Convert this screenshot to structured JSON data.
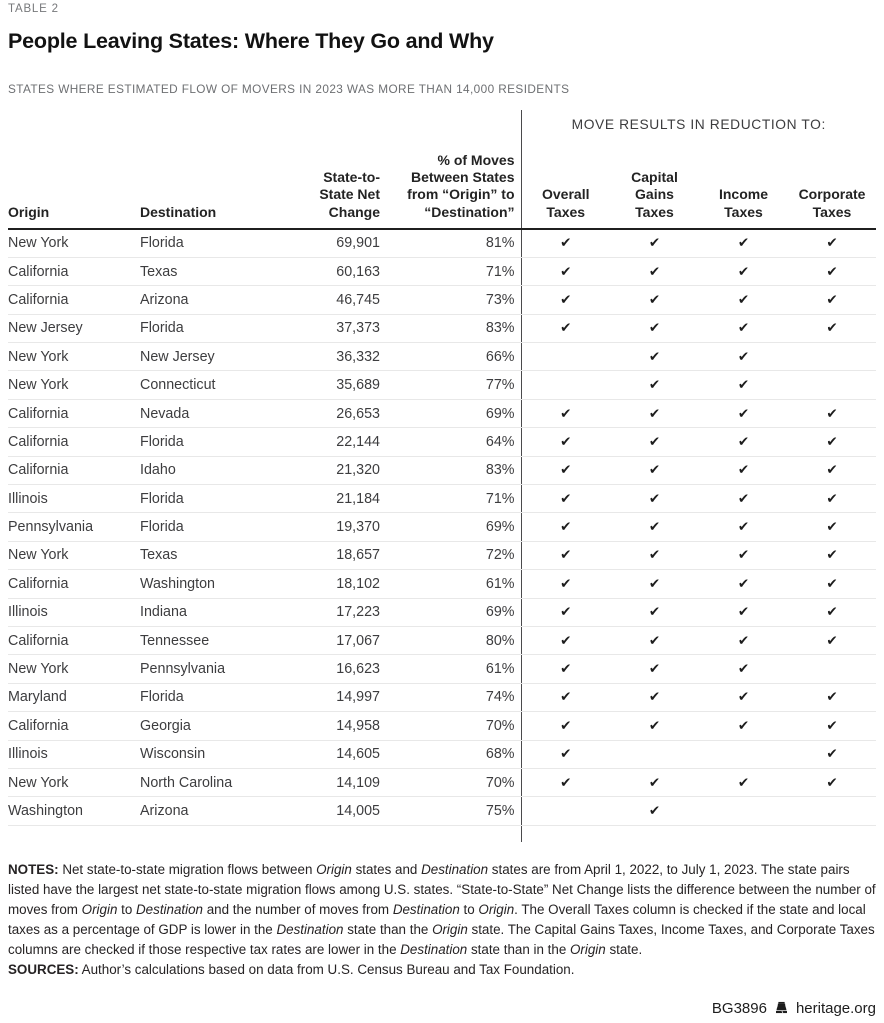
{
  "page": {
    "eyebrow": "TABLE 2",
    "title": "People Leaving States: Where They Go and Why",
    "subtitle": "STATES WHERE ESTIMATED FLOW OF MOVERS IN 2023 WAS MORE THAN 14,000 RESIDENTS"
  },
  "table": {
    "group_header": "MOVE RESULTS IN REDUCTION TO:",
    "check_glyph": "✔",
    "columns": {
      "origin": "Origin",
      "destination": "Destination",
      "net_change": "State-to-\nState Net\nChange",
      "pct_moves": "% of Moves\nBetween States\nfrom “Origin” to\n“Destination”",
      "overall": "Overall\nTaxes",
      "capital_gains": "Capital\nGains\nTaxes",
      "income": "Income\nTaxes",
      "corporate": "Corporate\nTaxes"
    },
    "rows": [
      {
        "origin": "New York",
        "destination": "Florida",
        "net_change": "69,901",
        "pct": "81%",
        "checks": [
          true,
          true,
          true,
          true
        ]
      },
      {
        "origin": "California",
        "destination": "Texas",
        "net_change": "60,163",
        "pct": "71%",
        "checks": [
          true,
          true,
          true,
          true
        ]
      },
      {
        "origin": "California",
        "destination": "Arizona",
        "net_change": "46,745",
        "pct": "73%",
        "checks": [
          true,
          true,
          true,
          true
        ]
      },
      {
        "origin": "New Jersey",
        "destination": "Florida",
        "net_change": "37,373",
        "pct": "83%",
        "checks": [
          true,
          true,
          true,
          true
        ]
      },
      {
        "origin": "New York",
        "destination": "New Jersey",
        "net_change": "36,332",
        "pct": "66%",
        "checks": [
          false,
          true,
          true,
          false
        ]
      },
      {
        "origin": "New York",
        "destination": "Connecticut",
        "net_change": "35,689",
        "pct": "77%",
        "checks": [
          false,
          true,
          true,
          false
        ]
      },
      {
        "origin": "California",
        "destination": "Nevada",
        "net_change": "26,653",
        "pct": "69%",
        "checks": [
          true,
          true,
          true,
          true
        ]
      },
      {
        "origin": "California",
        "destination": "Florida",
        "net_change": "22,144",
        "pct": "64%",
        "checks": [
          true,
          true,
          true,
          true
        ]
      },
      {
        "origin": "California",
        "destination": "Idaho",
        "net_change": "21,320",
        "pct": "83%",
        "checks": [
          true,
          true,
          true,
          true
        ]
      },
      {
        "origin": "Illinois",
        "destination": "Florida",
        "net_change": "21,184",
        "pct": "71%",
        "checks": [
          true,
          true,
          true,
          true
        ]
      },
      {
        "origin": "Pennsylvania",
        "destination": "Florida",
        "net_change": "19,370",
        "pct": "69%",
        "checks": [
          true,
          true,
          true,
          true
        ]
      },
      {
        "origin": "New York",
        "destination": "Texas",
        "net_change": "18,657",
        "pct": "72%",
        "checks": [
          true,
          true,
          true,
          true
        ]
      },
      {
        "origin": "California",
        "destination": "Washington",
        "net_change": "18,102",
        "pct": "61%",
        "checks": [
          true,
          true,
          true,
          true
        ]
      },
      {
        "origin": "Illinois",
        "destination": "Indiana",
        "net_change": "17,223",
        "pct": "69%",
        "checks": [
          true,
          true,
          true,
          true
        ]
      },
      {
        "origin": "California",
        "destination": "Tennessee",
        "net_change": "17,067",
        "pct": "80%",
        "checks": [
          true,
          true,
          true,
          true
        ]
      },
      {
        "origin": "New York",
        "destination": "Pennsylvania",
        "net_change": "16,623",
        "pct": "61%",
        "checks": [
          true,
          true,
          true,
          false
        ]
      },
      {
        "origin": "Maryland",
        "destination": "Florida",
        "net_change": "14,997",
        "pct": "74%",
        "checks": [
          true,
          true,
          true,
          true
        ]
      },
      {
        "origin": "California",
        "destination": "Georgia",
        "net_change": "14,958",
        "pct": "70%",
        "checks": [
          true,
          true,
          true,
          true
        ]
      },
      {
        "origin": "Illinois",
        "destination": "Wisconsin",
        "net_change": "14,605",
        "pct": "68%",
        "checks": [
          true,
          false,
          false,
          true
        ]
      },
      {
        "origin": "New York",
        "destination": "North Carolina",
        "net_change": "14,109",
        "pct": "70%",
        "checks": [
          true,
          true,
          true,
          true
        ]
      },
      {
        "origin": "Washington",
        "destination": "Arizona",
        "net_change": "14,005",
        "pct": "75%",
        "checks": [
          false,
          true,
          false,
          false
        ]
      }
    ]
  },
  "notes": {
    "label": "NOTES:",
    "segments": [
      {
        "t": " Net state-to-state migration flows between "
      },
      {
        "t": "Origin",
        "i": true
      },
      {
        "t": " states and "
      },
      {
        "t": "Destination",
        "i": true
      },
      {
        "t": " states are from April 1, 2022, to July 1, 2023. The state pairs listed have the largest net state-to-state migration flows among U.S. states. “State-to-State” Net Change lists the difference between the number of moves from "
      },
      {
        "t": "Origin",
        "i": true
      },
      {
        "t": " to "
      },
      {
        "t": "Destination",
        "i": true
      },
      {
        "t": " and the number of moves from "
      },
      {
        "t": "Destination",
        "i": true
      },
      {
        "t": " to "
      },
      {
        "t": "Origin",
        "i": true
      },
      {
        "t": ". The Overall Taxes column is checked if the state and local taxes as a percentage of GDP is lower in the "
      },
      {
        "t": "Destination",
        "i": true
      },
      {
        "t": " state than the "
      },
      {
        "t": "Origin",
        "i": true
      },
      {
        "t": " state. The Capital Gains Taxes, Income Taxes, and Corporate Taxes columns are checked if those respective tax rates are lower in the "
      },
      {
        "t": "Destination",
        "i": true
      },
      {
        "t": " state than in the "
      },
      {
        "t": "Origin",
        "i": true
      },
      {
        "t": " state."
      }
    ]
  },
  "sources": {
    "label": "SOURCES:",
    "text": " Author’s calculations based on data from U.S. Census Bureau and Tax Foundation."
  },
  "footer": {
    "doc_id": "BG3896",
    "site": "heritage.org",
    "bell_icon": "liberty-bell-icon",
    "ink_color": "#1d1d1d"
  }
}
